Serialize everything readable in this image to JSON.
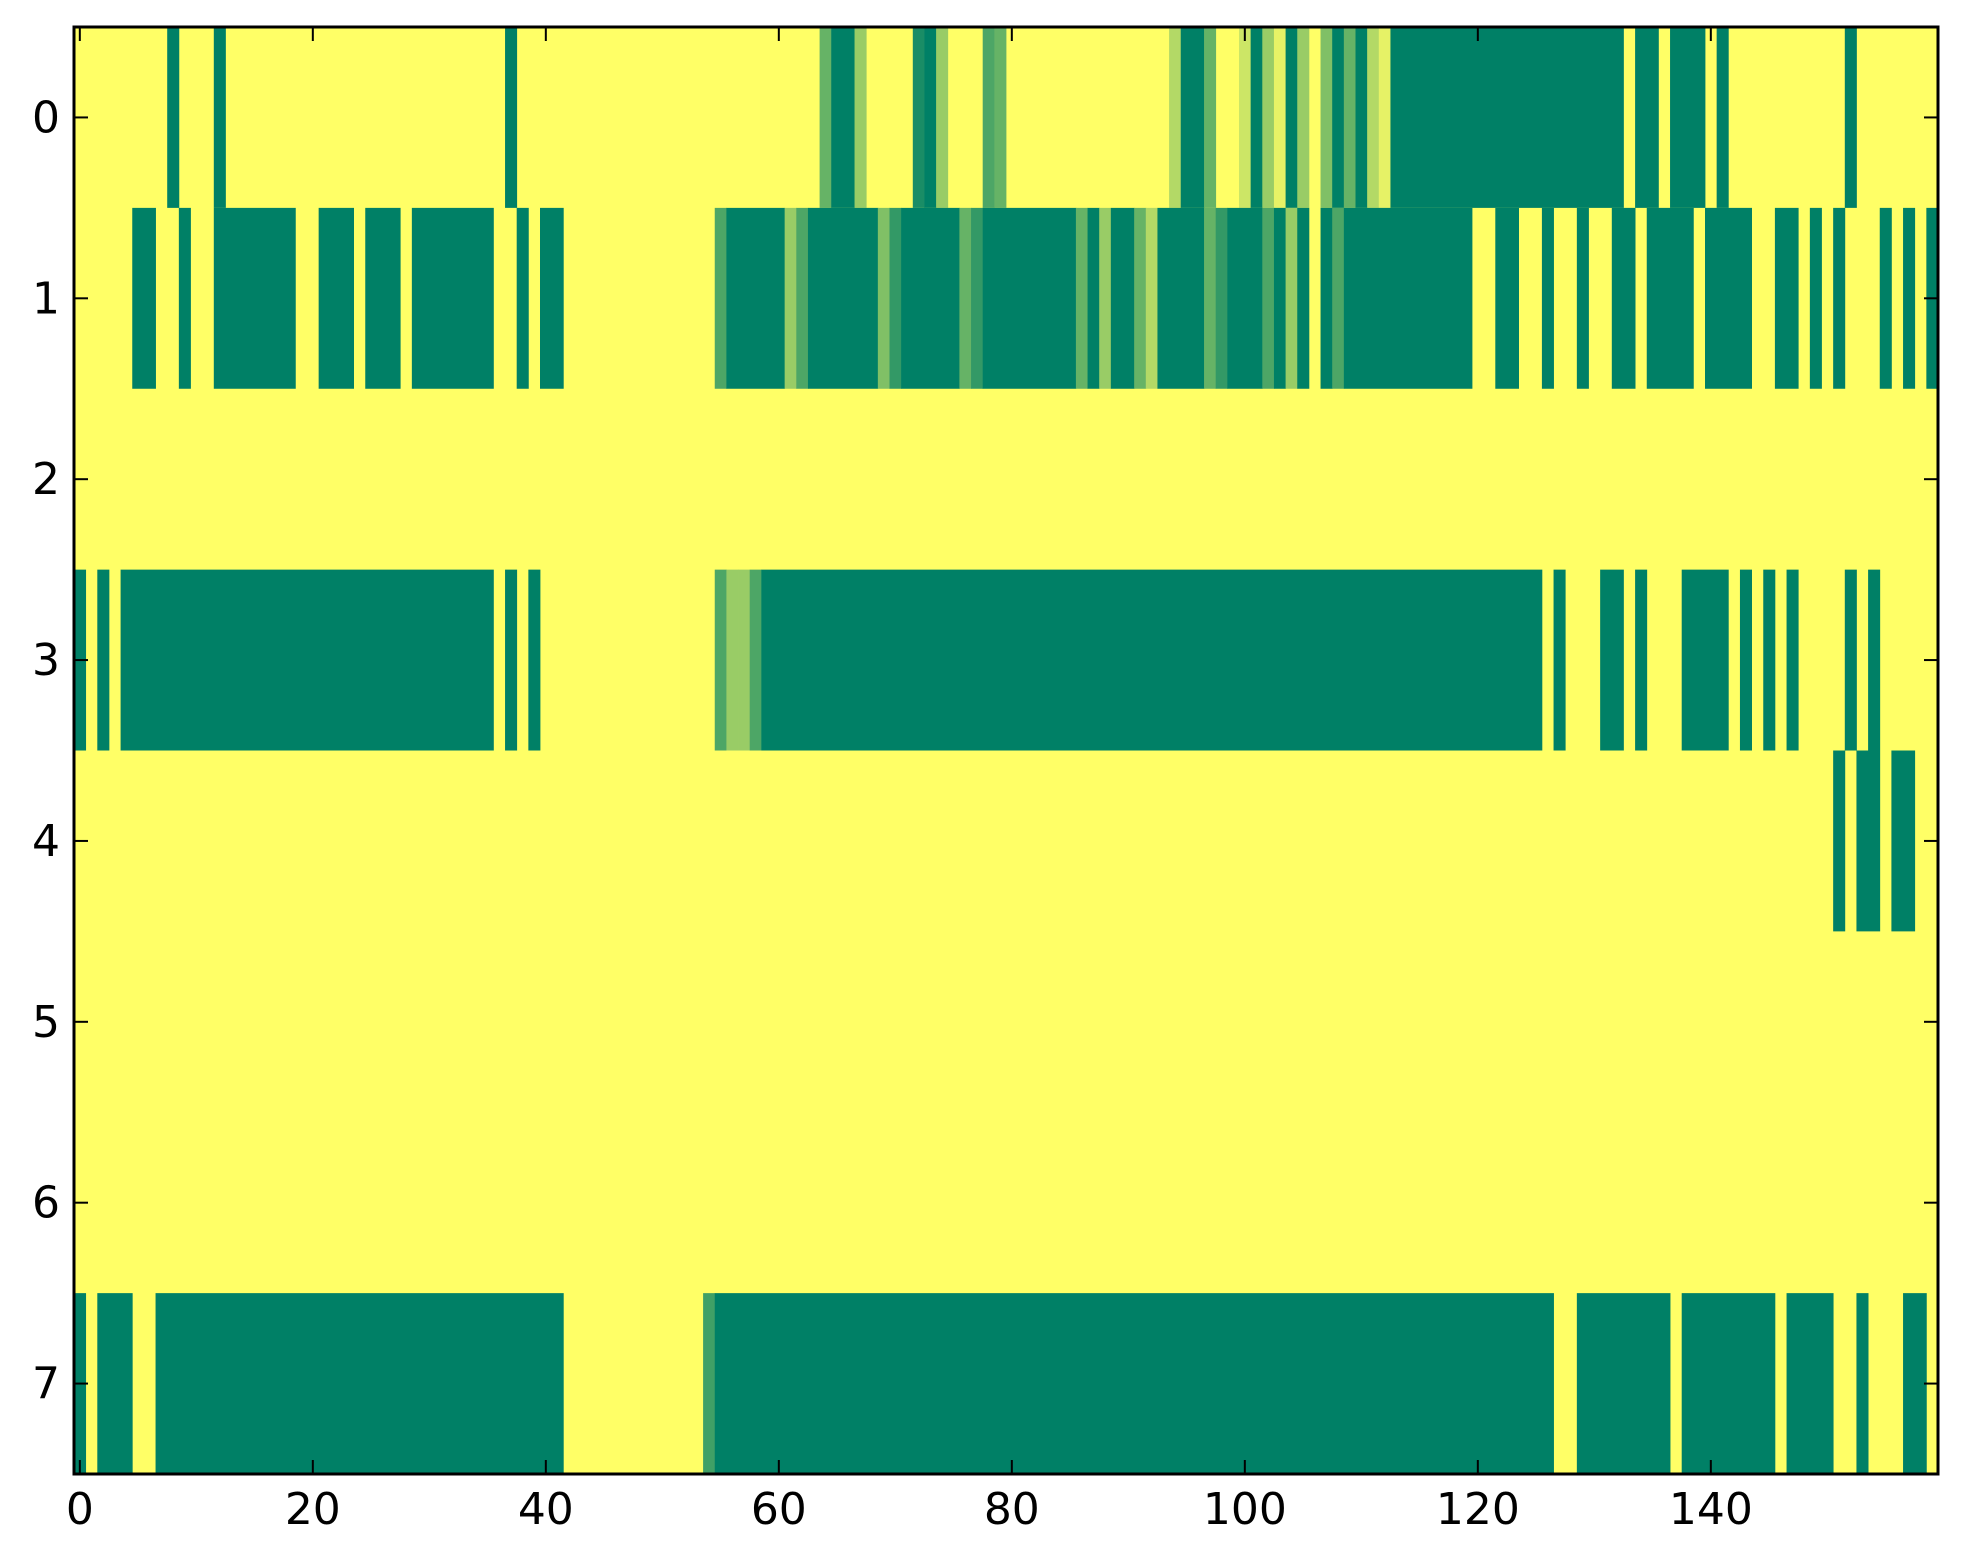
{
  "chart_data": {
    "type": "heatmap",
    "title": "",
    "xlabel": "",
    "ylabel": "",
    "n_cols": 160,
    "n_rows": 8,
    "xlim": [
      -0.5,
      159.5
    ],
    "ylim": [
      7.5,
      -0.5
    ],
    "x_ticks": [
      0,
      20,
      40,
      60,
      80,
      100,
      120,
      140
    ],
    "x_tick_labels": [
      "0",
      "20",
      "40",
      "60",
      "80",
      "100",
      "120",
      "140"
    ],
    "y_ticks": [
      0,
      1,
      2,
      3,
      4,
      5,
      6,
      7
    ],
    "y_tick_labels": [
      "0",
      "1",
      "2",
      "3",
      "4",
      "5",
      "6",
      "7"
    ],
    "grid": false,
    "colormap": "summer",
    "value_range": [
      0,
      1
    ],
    "background_value": 1,
    "colors": {
      "low": "#008066",
      "high": "#ffff66"
    },
    "rows": [
      {
        "row": 0,
        "segments": [
          [
            8,
            8,
            0
          ],
          [
            12,
            12,
            0
          ],
          [
            37,
            37,
            0
          ],
          [
            64,
            64,
            0.4
          ],
          [
            65,
            66,
            0
          ],
          [
            67,
            67,
            0.6
          ],
          [
            72,
            72,
            0.1
          ],
          [
            73,
            73,
            0
          ],
          [
            74,
            74,
            0.6
          ],
          [
            78,
            78,
            0.3
          ],
          [
            79,
            79,
            0.4
          ],
          [
            94,
            94,
            0.7
          ],
          [
            95,
            96,
            0
          ],
          [
            97,
            97,
            0.4
          ],
          [
            100,
            100,
            0.8
          ],
          [
            101,
            101,
            0
          ],
          [
            102,
            102,
            0.6
          ],
          [
            103,
            103,
            0.9
          ],
          [
            104,
            104,
            0
          ],
          [
            105,
            105,
            0.6
          ],
          [
            107,
            107,
            0.5
          ],
          [
            108,
            108,
            0
          ],
          [
            109,
            109,
            0.4
          ],
          [
            110,
            110,
            0
          ],
          [
            111,
            111,
            0.7
          ],
          [
            112,
            112,
            0.9
          ],
          [
            113,
            132,
            0
          ],
          [
            134,
            135,
            0
          ],
          [
            137,
            139,
            0
          ],
          [
            141,
            141,
            0
          ],
          [
            152,
            152,
            0
          ]
        ]
      },
      {
        "row": 1,
        "segments": [
          [
            5,
            6,
            0
          ],
          [
            9,
            9,
            0
          ],
          [
            12,
            18,
            0
          ],
          [
            21,
            23,
            0
          ],
          [
            25,
            27,
            0
          ],
          [
            29,
            35,
            0
          ],
          [
            38,
            38,
            0
          ],
          [
            40,
            41,
            0
          ],
          [
            55,
            55,
            0.3
          ],
          [
            56,
            60,
            0
          ],
          [
            61,
            61,
            0.6
          ],
          [
            62,
            62,
            0.3
          ],
          [
            63,
            68,
            0
          ],
          [
            69,
            69,
            0.5
          ],
          [
            70,
            70,
            0.2
          ],
          [
            71,
            75,
            0
          ],
          [
            76,
            76,
            0.4
          ],
          [
            77,
            77,
            0.2
          ],
          [
            78,
            85,
            0
          ],
          [
            86,
            86,
            0.4
          ],
          [
            87,
            87,
            0
          ],
          [
            88,
            88,
            0.6
          ],
          [
            89,
            90,
            0
          ],
          [
            91,
            91,
            0.4
          ],
          [
            92,
            92,
            0.7
          ],
          [
            93,
            96,
            0
          ],
          [
            97,
            97,
            0.4
          ],
          [
            98,
            98,
            0.2
          ],
          [
            99,
            101,
            0
          ],
          [
            102,
            102,
            0.3
          ],
          [
            103,
            103,
            0
          ],
          [
            104,
            104,
            0.6
          ],
          [
            105,
            105,
            0
          ],
          [
            107,
            107,
            0
          ],
          [
            108,
            108,
            0.3
          ],
          [
            109,
            119,
            0
          ],
          [
            122,
            123,
            0
          ],
          [
            126,
            126,
            0
          ],
          [
            129,
            129,
            0
          ],
          [
            132,
            133,
            0
          ],
          [
            135,
            138,
            0
          ],
          [
            140,
            143,
            0
          ],
          [
            146,
            147,
            0
          ],
          [
            149,
            149,
            0
          ],
          [
            151,
            151,
            0
          ],
          [
            155,
            155,
            0
          ],
          [
            157,
            157,
            0
          ],
          [
            159,
            159,
            0
          ]
        ]
      },
      {
        "row": 2,
        "segments": []
      },
      {
        "row": 3,
        "segments": [
          [
            0,
            0,
            0
          ],
          [
            2,
            2,
            0
          ],
          [
            4,
            35,
            0
          ],
          [
            37,
            37,
            0
          ],
          [
            39,
            39,
            0
          ],
          [
            55,
            55,
            0.3
          ],
          [
            56,
            56,
            0.6
          ],
          [
            57,
            57,
            0.6
          ],
          [
            58,
            58,
            0.3
          ],
          [
            59,
            125,
            0
          ],
          [
            127,
            127,
            0
          ],
          [
            131,
            132,
            0
          ],
          [
            134,
            134,
            0
          ],
          [
            138,
            141,
            0
          ],
          [
            143,
            143,
            0
          ],
          [
            145,
            145,
            0
          ],
          [
            147,
            147,
            0
          ],
          [
            152,
            152,
            0
          ],
          [
            154,
            154,
            0
          ]
        ]
      },
      {
        "row": 4,
        "segments": [
          [
            151,
            151,
            0
          ],
          [
            153,
            154,
            0
          ],
          [
            156,
            157,
            0
          ]
        ]
      },
      {
        "row": 5,
        "segments": []
      },
      {
        "row": 6,
        "segments": []
      },
      {
        "row": 7,
        "segments": [
          [
            0,
            0,
            0
          ],
          [
            2,
            4,
            0
          ],
          [
            7,
            41,
            0
          ],
          [
            54,
            54,
            0.25
          ],
          [
            55,
            126,
            0
          ],
          [
            129,
            136,
            0
          ],
          [
            138,
            145,
            0
          ],
          [
            147,
            150,
            0
          ],
          [
            153,
            153,
            0
          ],
          [
            157,
            158,
            0
          ]
        ]
      }
    ]
  }
}
